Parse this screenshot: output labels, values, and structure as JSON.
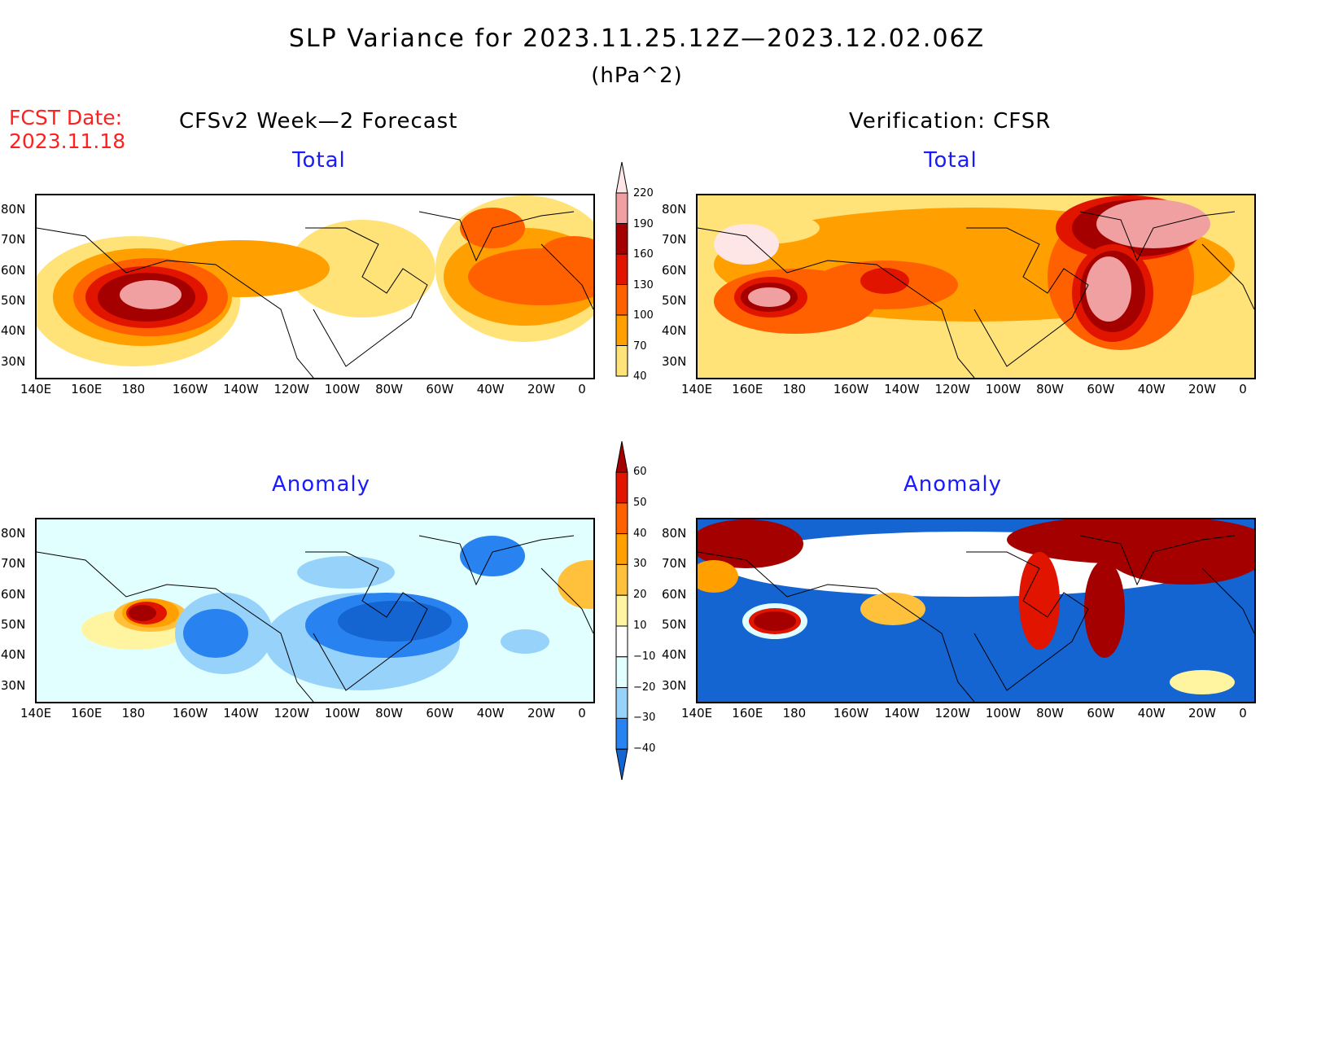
{
  "title": "SLP Variance for 2023.11.25.12Z—2023.12.02.06Z",
  "units": "(hPa^2)",
  "fcst_date_label": "FCST Date:",
  "fcst_date": "2023.11.18",
  "left_header": "CFSv2 Week—2 Forecast",
  "right_header": "Verification: CFSR",
  "panels": [
    {
      "id": "forecast-total",
      "subtitle": "Total"
    },
    {
      "id": "verification-total",
      "subtitle": "Total"
    },
    {
      "id": "forecast-anomaly",
      "subtitle": "Anomaly"
    },
    {
      "id": "verification-anomaly",
      "subtitle": "Anomaly"
    }
  ],
  "lon_ticks": [
    "140E",
    "160E",
    "180",
    "160W",
    "140W",
    "120W",
    "100W",
    "80W",
    "60W",
    "40W",
    "20W",
    "0"
  ],
  "lat_ticks": [
    "80N",
    "70N",
    "60N",
    "50N",
    "40N",
    "30N"
  ],
  "total_colorbar": {
    "levels": [
      "40",
      "70",
      "100",
      "130",
      "160",
      "190",
      "220"
    ],
    "colors": [
      "#ffe278",
      "#ffa000",
      "#ff6000",
      "#e11400",
      "#a50000",
      "#f0a0a0",
      "#ffe6e6"
    ]
  },
  "anomaly_colorbar": {
    "levels": [
      "60",
      "50",
      "40",
      "30",
      "20",
      "10",
      "−10",
      "−20",
      "−30",
      "−40"
    ],
    "colors": [
      "#a50000",
      "#e11400",
      "#ff6000",
      "#ffa000",
      "#ffc03c",
      "#fff5a0",
      "#ffffff",
      "#e1ffff",
      "#96d2fa",
      "#2882f0",
      "#1464d2"
    ]
  }
}
